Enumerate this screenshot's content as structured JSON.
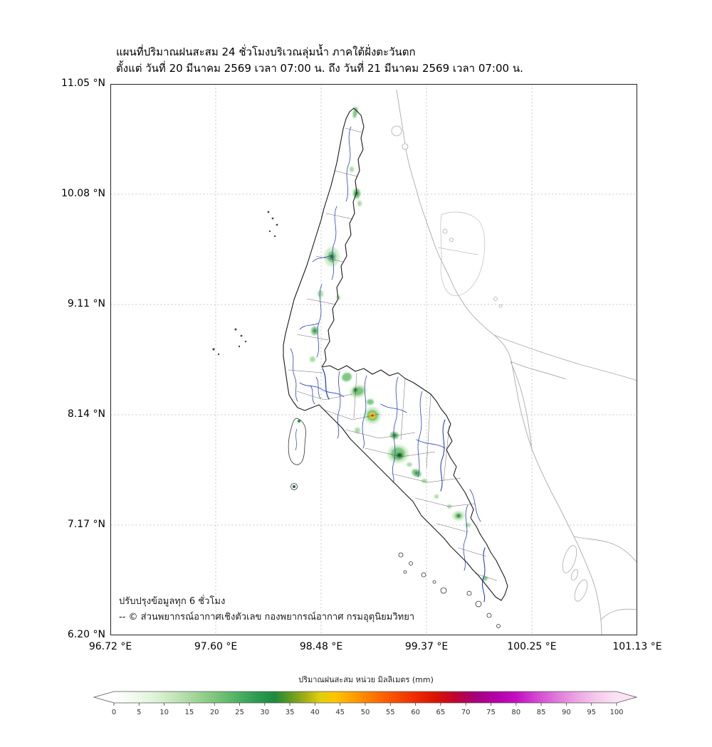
{
  "header": {
    "title": "แผนที่ปริมาณฝนสะสม 24 ชั่วโมงบริเวณลุ่มน้ำ ภาคใต้ฝั่งตะวันตก",
    "subtitle": "ตั้งแต่ วันที่ 20 มีนาคม 2569 เวลา 07:00 น. ถึง วันที่ 21 มีนาคม 2569 เวลา 07:00 น."
  },
  "map": {
    "y_ticks": [
      "11.05 °N",
      "10.08 °N",
      "9.11 °N",
      "8.14 °N",
      "7.17 °N",
      "6.20 °N"
    ],
    "x_ticks": [
      "96.72 °E",
      "97.60 °E",
      "98.48 °E",
      "99.37 °E",
      "100.25 °E",
      "101.13 °E"
    ],
    "notes": [
      "ปรับปรุงข้อมูลทุก 6 ชั่วโมง",
      "-- © ส่วนพยากรณ์อากาศเชิงตัวเลข กองพยากรณ์อากาศ กรมอุตุนิยมวิทยา"
    ],
    "feature_colors": {
      "river": "#2743c7",
      "watershed_boundary": "#1a1a1a",
      "subbasin_boundary": "#555555",
      "outside_boundary": "#aaaaaa",
      "gridline": "#c4c4c4",
      "rain_light": "#a1d99b",
      "rain_medium": "#74c476",
      "rain_dark": "#1e7735",
      "rain_spot_orange": "#fb8c00"
    }
  },
  "colorbar": {
    "title": "ปริมาณฝนสะสม หน่วย มิลลิเมตร (mm)",
    "ticks": [
      "0",
      "5",
      "10",
      "15",
      "20",
      "25",
      "30",
      "35",
      "40",
      "45",
      "50",
      "55",
      "60",
      "65",
      "70",
      "75",
      "80",
      "85",
      "90",
      "95",
      "100"
    ],
    "arrow_left_color": "#ffffff",
    "arrow_right_color": "#fbe3f4",
    "stops": [
      {
        "value": 0,
        "color": "#ffffff"
      },
      {
        "value": 4,
        "color": "#f2faee"
      },
      {
        "value": 8,
        "color": "#dff3d8"
      },
      {
        "value": 12,
        "color": "#c3e6bb"
      },
      {
        "value": 16,
        "color": "#a4d69a"
      },
      {
        "value": 20,
        "color": "#7fc67c"
      },
      {
        "value": 24,
        "color": "#55b567"
      },
      {
        "value": 28,
        "color": "#2f9e53"
      },
      {
        "value": 32,
        "color": "#1d8a3f"
      },
      {
        "value": 35,
        "color": "#5f9a22"
      },
      {
        "value": 38,
        "color": "#a3ad19"
      },
      {
        "value": 41,
        "color": "#e0cf0d"
      },
      {
        "value": 44,
        "color": "#fdc500"
      },
      {
        "value": 48,
        "color": "#fd9b00"
      },
      {
        "value": 52,
        "color": "#fb7100"
      },
      {
        "value": 56,
        "color": "#f64d00"
      },
      {
        "value": 60,
        "color": "#ee2c00"
      },
      {
        "value": 64,
        "color": "#da1400"
      },
      {
        "value": 68,
        "color": "#bf0430"
      },
      {
        "value": 72,
        "color": "#a4007c"
      },
      {
        "value": 76,
        "color": "#b400a6"
      },
      {
        "value": 80,
        "color": "#c30ec2"
      },
      {
        "value": 84,
        "color": "#d246cf"
      },
      {
        "value": 88,
        "color": "#df78d9"
      },
      {
        "value": 92,
        "color": "#eba5e3"
      },
      {
        "value": 96,
        "color": "#f5c9ed"
      },
      {
        "value": 100,
        "color": "#fbe3f4"
      }
    ]
  }
}
